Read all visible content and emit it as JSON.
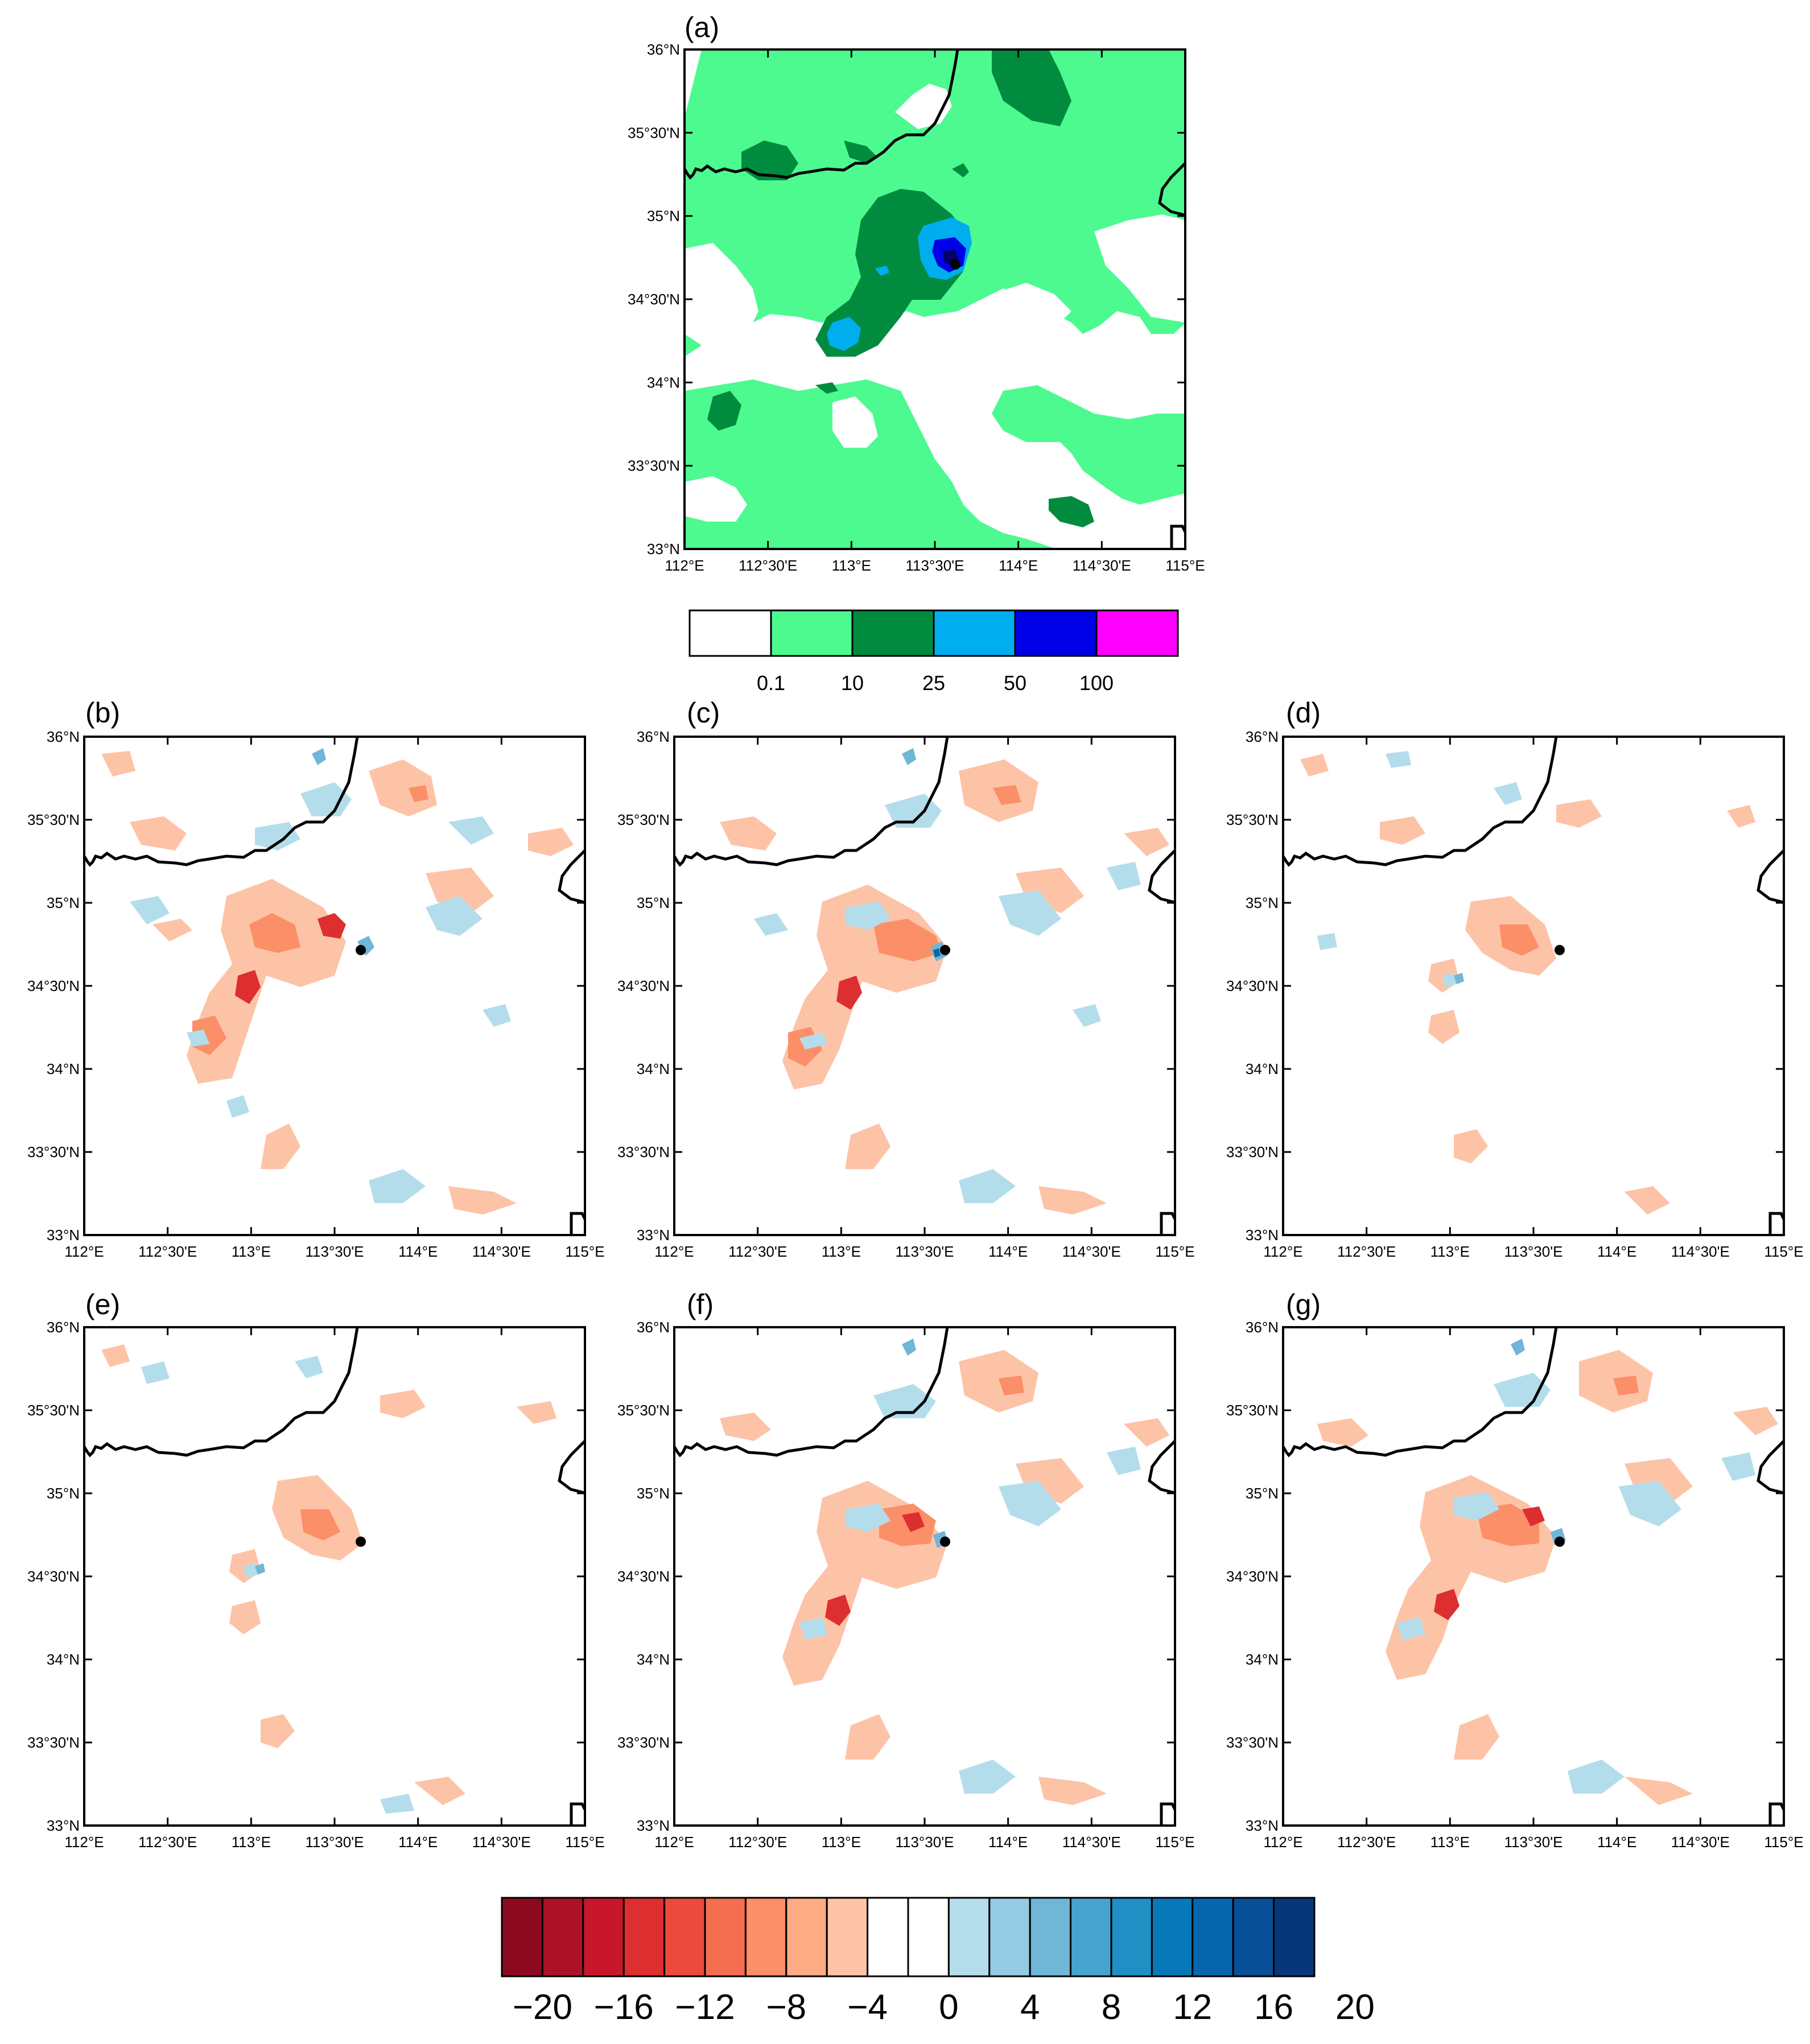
{
  "lat_labels": [
    "33°N",
    "33°30'N",
    "34°N",
    "34°30'N",
    "35°N",
    "35°30'N",
    "36°N"
  ],
  "lon_labels": [
    "112°E",
    "112°30'E",
    "113°E",
    "113°30'E",
    "114°E",
    "114°30'E",
    "115°E"
  ],
  "panels": [
    {
      "id": "a",
      "label": "(a)"
    },
    {
      "id": "b",
      "label": "(b)"
    },
    {
      "id": "c",
      "label": "(c)"
    },
    {
      "id": "d",
      "label": "(d)"
    },
    {
      "id": "e",
      "label": "(e)"
    },
    {
      "id": "f",
      "label": "(f)"
    },
    {
      "id": "g",
      "label": "(g)"
    }
  ],
  "precip_colorbar": {
    "colors": [
      "#ffffff",
      "#4dfa90",
      "#008b3f",
      "#00aeef",
      "#0000e6",
      "#ff00ff"
    ],
    "labels": [
      "0.1",
      "10",
      "25",
      "50",
      "100"
    ]
  },
  "diff_colorbar": {
    "colors": [
      "#8b0a1f",
      "#ac1227",
      "#c8172b",
      "#dd2e30",
      "#eb4a3c",
      "#f56e52",
      "#fb8f68",
      "#fcab85",
      "#fdc3a7",
      "#ffffff",
      "#ffffff",
      "#b4ddec",
      "#93cbe2",
      "#6fb6d7",
      "#47a4cf",
      "#1f8fc4",
      "#0879b8",
      "#0866ad",
      "#084f97",
      "#07377a"
    ],
    "labels": [
      "−20",
      "−16",
      "−12",
      "−8",
      "−4",
      "0",
      "4",
      "8",
      "12",
      "16",
      "20"
    ]
  }
}
